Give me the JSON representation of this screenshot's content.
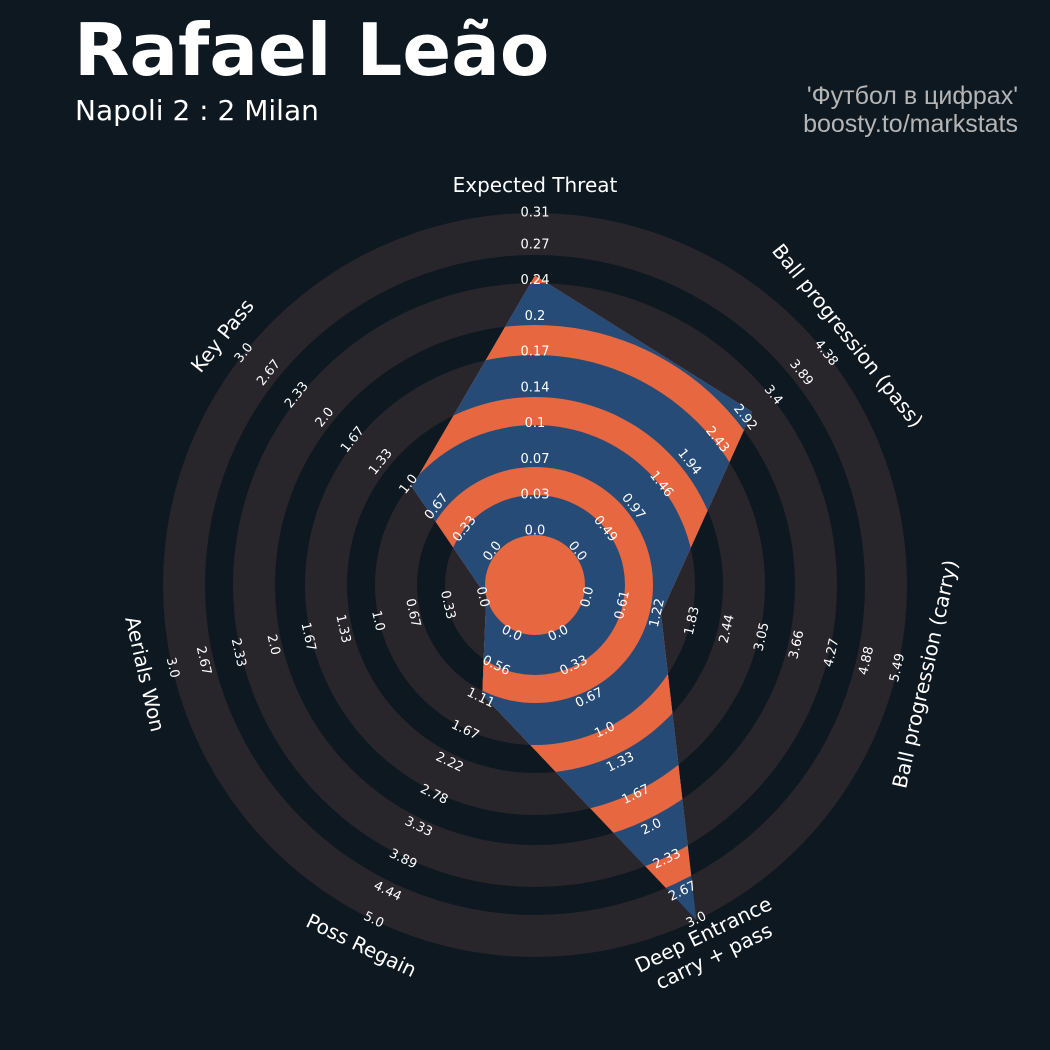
{
  "header": {
    "title": "Rafael Leão",
    "subtitle": "Napoli 2 : 2 Milan",
    "credit_line1": "'Футбол в цифрах'",
    "credit_line2": "boosty.to/markstats"
  },
  "colors": {
    "background": "#0e1820",
    "ring_light": "#28252b",
    "ring_dark": "#0e1820",
    "polygon_band_a": "#274b77",
    "polygon_band_b": "#e66740",
    "text": "#ffffff"
  },
  "chart_data": {
    "type": "radar",
    "params": [
      {
        "name": "Expected Threat",
        "ticks": [
          "0.0",
          "0.03",
          "0.07",
          "0.1",
          "0.14",
          "0.17",
          "0.2",
          "0.24",
          "0.27",
          "0.31"
        ],
        "min": 0,
        "max": 0.31,
        "value": 0.25
      },
      {
        "name": "Ball progression (pass)",
        "ticks": [
          "0.0",
          "0.49",
          "0.97",
          "1.46",
          "1.94",
          "2.43",
          "2.92",
          "3.4",
          "3.89",
          "4.38"
        ],
        "min": 0,
        "max": 4.38,
        "value": 3.1
      },
      {
        "name": "Ball progression (carry)",
        "ticks": [
          "0.0",
          "0.61",
          "1.22",
          "1.83",
          "2.44",
          "3.05",
          "3.66",
          "4.27",
          "4.88",
          "5.49"
        ],
        "min": 0,
        "max": 5.49,
        "value": 1.35
      },
      {
        "name": "Deep Entrance\ncarry + pass",
        "ticks": [
          "0.0",
          "0.33",
          "0.67",
          "1.0",
          "1.33",
          "1.67",
          "2.0",
          "2.33",
          "2.67",
          "3.0"
        ],
        "min": 0,
        "max": 3.0,
        "value": 3.0
      },
      {
        "name": "Poss Regain",
        "ticks": [
          "0.0",
          "0.56",
          "1.11",
          "1.67",
          "2.22",
          "2.78",
          "3.33",
          "3.89",
          "4.44",
          "5.0"
        ],
        "min": 0,
        "max": 5.0,
        "value": 1.11
      },
      {
        "name": "Aerials Won",
        "ticks": [
          "0.0",
          "0.33",
          "0.67",
          "1.0",
          "1.33",
          "1.67",
          "2.0",
          "2.33",
          "2.67",
          "3.0"
        ],
        "min": 0,
        "max": 3.0,
        "value": 0
      },
      {
        "name": "Key Pass",
        "ticks": [
          "0.0",
          "0.33",
          "0.67",
          "1.0",
          "1.33",
          "1.67",
          "2.0",
          "2.33",
          "2.67",
          "3.0"
        ],
        "min": 0,
        "max": 3.0,
        "value": 1.0
      }
    ]
  }
}
